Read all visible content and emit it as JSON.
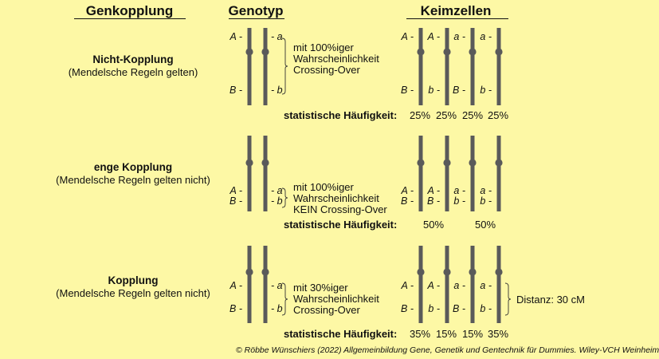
{
  "headers": {
    "genkopplung": "Genkopplung",
    "genotyp": "Genotyp",
    "keimzellen": "Keimzellen"
  },
  "rows": [
    {
      "title": "Nicht-Kopplung",
      "subtitle": "(Mendelsche Regeln gelten)",
      "genotype": {
        "left_top": "A",
        "left_bottom": "B",
        "right_top": "a",
        "right_bottom": "b"
      },
      "note": [
        "mit 100%iger",
        "Wahrscheinlichkeit",
        "Crossing-Over"
      ],
      "stat_label": "statistische Häufigkeit:",
      "gametes": [
        {
          "top": "A",
          "bottom": "B"
        },
        {
          "top": "A",
          "bottom": "b"
        },
        {
          "top": "a",
          "bottom": "B"
        },
        {
          "top": "a",
          "bottom": "b"
        }
      ],
      "percentages": [
        "25%",
        "25%",
        "25%",
        "25%"
      ]
    },
    {
      "title": "enge Kopplung",
      "subtitle": "(Mendelsche Regeln gelten nicht)",
      "genotype": {
        "left_top": "A",
        "left_bottom": "B",
        "right_top": "a",
        "right_bottom": "b"
      },
      "note": [
        "mit 100%iger",
        "Wahrscheinlichkeit",
        "KEIN Crossing-Over"
      ],
      "stat_label": "statistische Häufigkeit:",
      "gametes": [
        {
          "top": "A",
          "bottom": "B"
        },
        {
          "top": "A",
          "bottom": "B"
        },
        {
          "top": "a",
          "bottom": "b"
        },
        {
          "top": "a",
          "bottom": "b"
        }
      ],
      "percentages": [
        "50%",
        "50%"
      ]
    },
    {
      "title": "Kopplung",
      "subtitle": "(Mendelsche Regeln gelten nicht)",
      "genotype": {
        "left_top": "A",
        "left_bottom": "B",
        "right_top": "a",
        "right_bottom": "b"
      },
      "note": [
        "mit 30%iger",
        "Wahrscheinlichkeit",
        "Crossing-Over"
      ],
      "stat_label": "statistische Häufigkeit:",
      "gametes": [
        {
          "top": "A",
          "bottom": "B"
        },
        {
          "top": "A",
          "bottom": "b"
        },
        {
          "top": "a",
          "bottom": "B"
        },
        {
          "top": "a",
          "bottom": "b"
        }
      ],
      "percentages": [
        "35%",
        "15%",
        "15%",
        "35%"
      ],
      "distance_label": "Distanz: 30 cM"
    }
  ],
  "credit": "© Röbbe Wünschiers (2022) Allgemeinbildung Gene, Genetik und Gentechnik für Dummies. Wiley-VCH Weinheim",
  "colors": {
    "background": "#fdf8a5",
    "chromosome": "#5a5a5a"
  }
}
